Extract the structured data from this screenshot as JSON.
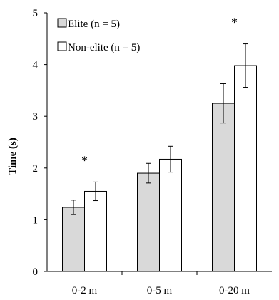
{
  "chart_data": {
    "type": "bar",
    "title": "",
    "xlabel": "",
    "ylabel": "Time (s)",
    "ylim": [
      0,
      5
    ],
    "yticks": [
      "0",
      "1",
      "2",
      "3",
      "4",
      "5"
    ],
    "grid": false,
    "legend_position": "top-left",
    "categories": [
      "0-2 m",
      "0-5 m",
      "0-20 m"
    ],
    "series": [
      {
        "name": "Elite (n = 5)",
        "color": "#d9d9d9",
        "values": [
          1.24,
          1.9,
          3.25
        ],
        "error": [
          0.14,
          0.19,
          0.38
        ]
      },
      {
        "name": "Non-elite (n = 5)",
        "color": "#ffffff",
        "values": [
          1.55,
          2.17,
          3.98
        ],
        "error": [
          0.18,
          0.25,
          0.42
        ]
      }
    ],
    "annotations": [
      {
        "category": "0-2 m",
        "text": "*"
      },
      {
        "category": "0-20 m",
        "text": "*"
      }
    ]
  }
}
